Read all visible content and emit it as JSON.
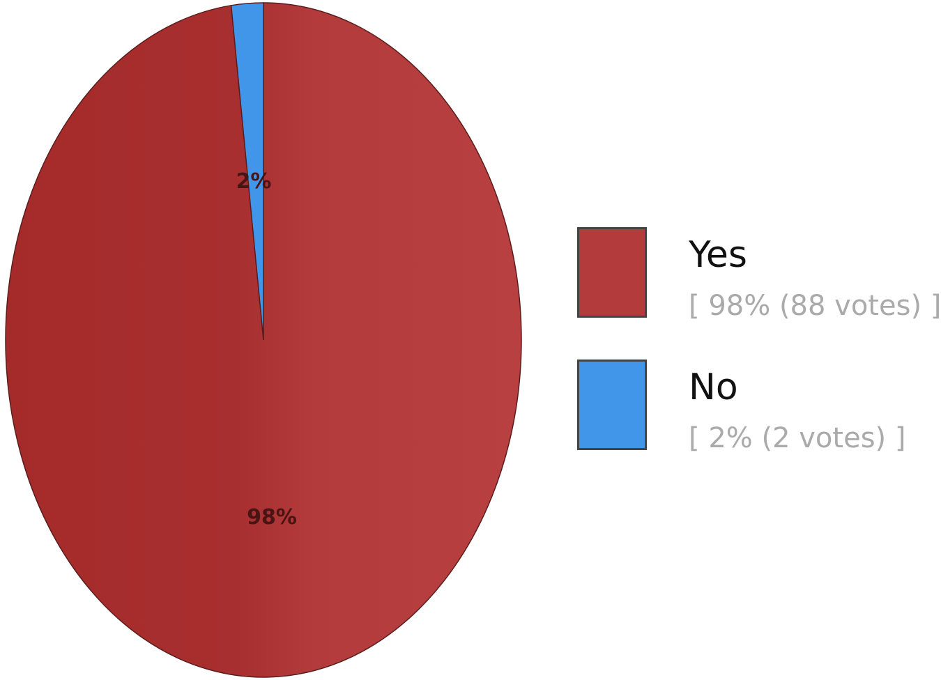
{
  "chart_data": {
    "type": "pie",
    "categories": [
      "Yes",
      "No"
    ],
    "values": [
      98,
      2
    ],
    "votes": [
      88,
      2
    ],
    "slice_labels": [
      "98%",
      "2%"
    ],
    "colors": [
      "#b33b3b",
      "#4296ea"
    ],
    "legend_placement": "right",
    "legend": [
      {
        "name": "Yes",
        "detail": "[ 98% (88 votes) ]",
        "color": "#b33b3b"
      },
      {
        "name": "No",
        "detail": "[ 2% (2 votes) ]",
        "color": "#4296ea"
      }
    ]
  }
}
